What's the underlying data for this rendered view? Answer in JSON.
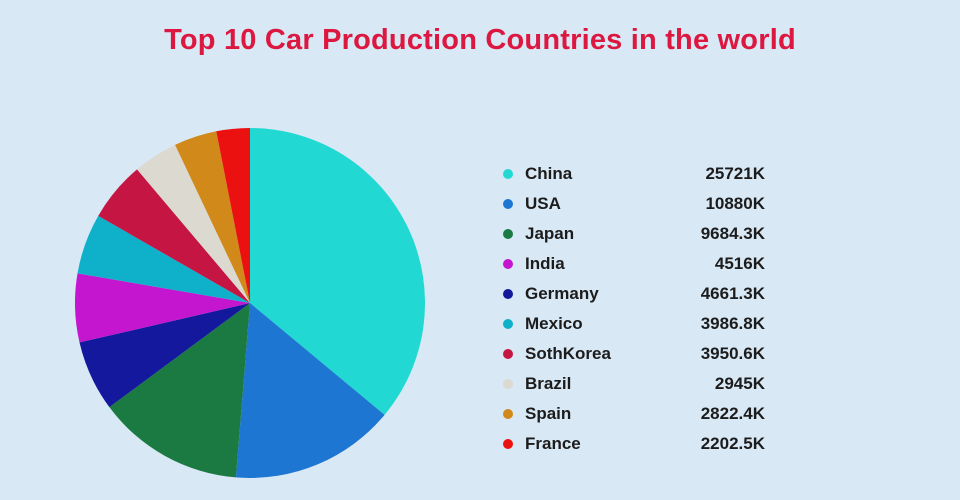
{
  "page": {
    "background_color": "#d8e8f5"
  },
  "title": {
    "text": "Top 10 Car Production Countries in the world",
    "color": "#dc1740"
  },
  "chart_data": {
    "type": "pie",
    "title": "Top 10 Car Production Countries in the world",
    "unit": "K",
    "legend_position": "right",
    "slice_order": "descending-by-value-clockwise-from-top",
    "series": [
      {
        "name": "China",
        "value": 25721,
        "label": "25721K",
        "color": "#22d8d2"
      },
      {
        "name": "USA",
        "value": 10880,
        "label": "10880K",
        "color": "#1d76d2"
      },
      {
        "name": "Japan",
        "value": 9684.3,
        "label": "9684.3K",
        "color": "#1a7a41"
      },
      {
        "name": "India",
        "value": 4516,
        "label": "4516K",
        "color": "#c316ce"
      },
      {
        "name": "Germany",
        "value": 4661.3,
        "label": "4661.3K",
        "color": "#13189c"
      },
      {
        "name": "Mexico",
        "value": 3986.8,
        "label": "3986.8K",
        "color": "#0fb0c9"
      },
      {
        "name": "SothKorea",
        "value": 3950.6,
        "label": "3950.6K",
        "color": "#c51543"
      },
      {
        "name": "Brazil",
        "value": 2945,
        "label": "2945K",
        "color": "#dcd9d0"
      },
      {
        "name": "Spain",
        "value": 2822.4,
        "label": "2822.4K",
        "color": "#d1891a"
      },
      {
        "name": "France",
        "value": 2202.5,
        "label": "2202.5K",
        "color": "#ec1111"
      }
    ]
  }
}
